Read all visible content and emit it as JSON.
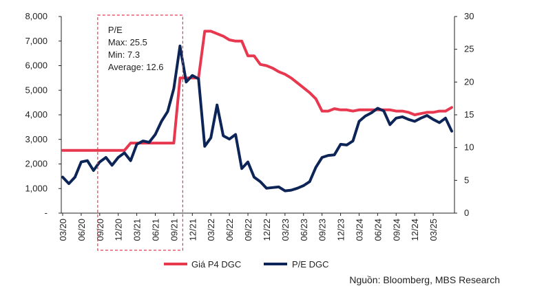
{
  "chart_data": {
    "type": "line",
    "dual_axis": true,
    "x_tick_labels": [
      "03/20",
      "06/20",
      "09/20",
      "12/20",
      "03/21",
      "06/21",
      "09/21",
      "12/21",
      "03/22",
      "06/22",
      "09/22",
      "12/22",
      "03/23",
      "06/23",
      "09/23",
      "12/23",
      "03/24",
      "06/24",
      "09/24",
      "12/24",
      "03/25"
    ],
    "y_left": {
      "range": [
        0,
        8000
      ],
      "ticks": [
        "-",
        "1,000",
        "2,000",
        "3,000",
        "4,000",
        "5,000",
        "6,000",
        "7,000",
        "8,000"
      ]
    },
    "y_right": {
      "range": [
        0,
        30
      ],
      "ticks": [
        "0",
        "5",
        "10",
        "15",
        "20",
        "25",
        "30"
      ]
    },
    "series": [
      {
        "name": "Giá P4 DGC",
        "axis": "left",
        "color": "#e8384f",
        "x": [
          0,
          1,
          2,
          3,
          4,
          5,
          6,
          7,
          8,
          9,
          10,
          11,
          12,
          13,
          14,
          15,
          16,
          17,
          18,
          19,
          20,
          21,
          22,
          23,
          24,
          25,
          26,
          27,
          28,
          29,
          30,
          31,
          32,
          33,
          34,
          35,
          36,
          37,
          38,
          39,
          40,
          41,
          42,
          43,
          44,
          45,
          46,
          47,
          48,
          49,
          50,
          51,
          52,
          53,
          54,
          55,
          56,
          57,
          58,
          59,
          60,
          61,
          62,
          63
        ],
        "values": [
          2550,
          2550,
          2550,
          2550,
          2550,
          2550,
          2550,
          2550,
          2550,
          2550,
          2550,
          2850,
          2850,
          2850,
          2850,
          2850,
          2850,
          2850,
          2850,
          5500,
          5500,
          5500,
          5500,
          7400,
          7400,
          7300,
          7200,
          7050,
          7000,
          7000,
          6400,
          6400,
          6050,
          6000,
          5900,
          5750,
          5650,
          5500,
          5300,
          5100,
          4900,
          4650,
          4150,
          4150,
          4250,
          4200,
          4200,
          4150,
          4200,
          4200,
          4200,
          4200,
          4200,
          4200,
          4150,
          4150,
          4100,
          4000,
          4050,
          4100,
          4100,
          4150,
          4150,
          4300
        ]
      },
      {
        "name": "P/E DGC",
        "axis": "right",
        "color": "#0d2457",
        "x": [
          0,
          1,
          2,
          3,
          4,
          5,
          6,
          7,
          8,
          9,
          10,
          11,
          12,
          13,
          14,
          15,
          16,
          17,
          18,
          19,
          20,
          21,
          22,
          23,
          24,
          25,
          26,
          27,
          28,
          29,
          30,
          31,
          32,
          33,
          34,
          35,
          36,
          37,
          38,
          39,
          40,
          41,
          42,
          43,
          44,
          45,
          46,
          47,
          48,
          49,
          50,
          51,
          52,
          53,
          54,
          55,
          56,
          57,
          58,
          59,
          60,
          61,
          62,
          63
        ],
        "values": [
          5.5,
          4.5,
          5.5,
          7.8,
          8.0,
          6.5,
          7.8,
          8.5,
          7.3,
          8.5,
          9.2,
          8.0,
          10.5,
          11.0,
          10.8,
          12.0,
          14.0,
          15.5,
          19.0,
          25.5,
          20.0,
          21.0,
          20.5,
          10.2,
          11.5,
          16.5,
          11.8,
          11.3,
          12.0,
          6.8,
          7.8,
          5.5,
          4.8,
          3.8,
          3.9,
          4.0,
          3.4,
          3.5,
          3.8,
          4.2,
          4.8,
          7.0,
          8.5,
          8.8,
          8.9,
          10.5,
          10.4,
          11.0,
          14.0,
          14.8,
          15.3,
          16.0,
          15.6,
          13.5,
          14.5,
          14.7,
          14.3,
          14.0,
          14.5,
          14.9,
          14.3,
          13.8,
          14.5,
          12.5
        ]
      }
    ],
    "annotation": {
      "title": "P/E",
      "lines": [
        "Max: 25.5",
        "Min: 7.3",
        "Average: 12.6"
      ],
      "highlight_x_range": [
        5,
        19
      ]
    },
    "legend_position": "bottom",
    "grid": false
  },
  "source": "Nguồn: Bloomberg, MBS Research"
}
